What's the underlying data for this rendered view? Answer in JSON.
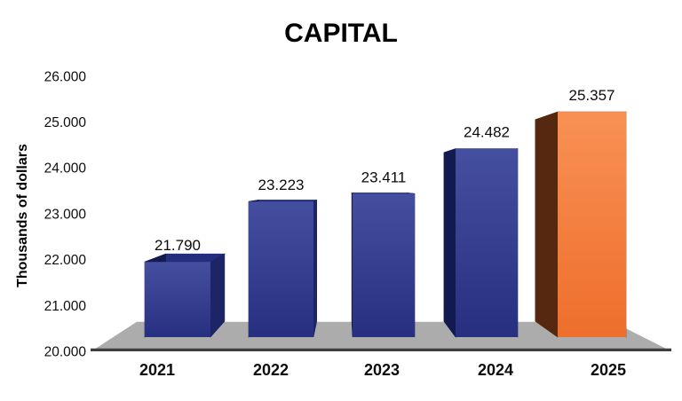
{
  "page": {
    "background": "#FFFFFF"
  },
  "chart_data": {
    "type": "bar",
    "style": "3d-perspective-column",
    "title": "CAPITAL",
    "ylabel": "Thousands of dollars",
    "xlabel": "",
    "categories": [
      "2021",
      "2022",
      "2023",
      "2024",
      "2025"
    ],
    "values": [
      21790,
      23223,
      23411,
      24482,
      25357
    ],
    "data_labels": [
      "21.790",
      "23.223",
      "23.411",
      "24.482",
      "25.357"
    ],
    "ylim": [
      20000,
      26000
    ],
    "ytick_step": 1000,
    "ytick_labels": [
      "20.000",
      "21.000",
      "22.000",
      "23.000",
      "24.000",
      "25.000",
      "26.000"
    ],
    "grid": false,
    "legend": false,
    "highlighted_bar_index": 4,
    "colors": {
      "bar_front_light": "#454FA0",
      "bar_front_dark": "#272F80",
      "bar_top": "#242E7C",
      "bar_side_right": "#1D2566",
      "bar_side_left": "#131A4F",
      "highlight_front_light": "#F89155",
      "highlight_front_dark": "#EE6E2B",
      "highlight_top": "#A04A18",
      "highlight_side_left": "#56280F",
      "highlight_side_right": "#7A3A1A",
      "floor": "#ACACAC",
      "axis_line": "#3F3F3F",
      "text": "#000000"
    }
  }
}
